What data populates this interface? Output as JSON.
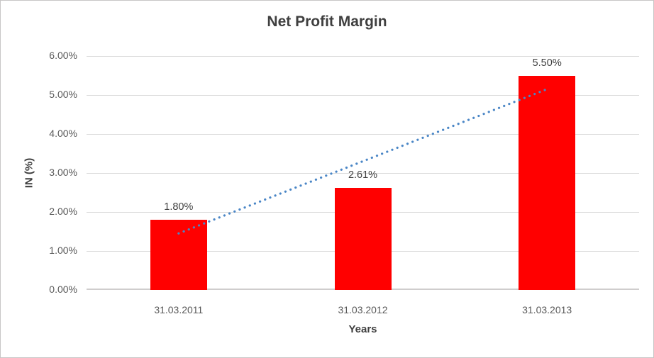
{
  "chart_data": {
    "type": "bar",
    "title": "Net Profit Margin",
    "xlabel": "Years",
    "ylabel": "IN (%)",
    "categories": [
      "31.03.2011",
      "31.03.2012",
      "31.03.2013"
    ],
    "values": [
      1.8,
      2.61,
      5.5
    ],
    "data_labels": [
      "1.80%",
      "2.61%",
      "5.50%"
    ],
    "ylim": [
      0,
      6
    ],
    "yticks": [
      {
        "value": 0,
        "label": "0.00%"
      },
      {
        "value": 1,
        "label": "1.00%"
      },
      {
        "value": 2,
        "label": "2.00%"
      },
      {
        "value": 3,
        "label": "3.00%"
      },
      {
        "value": 4,
        "label": "4.00%"
      },
      {
        "value": 5,
        "label": "5.00%"
      },
      {
        "value": 6,
        "label": "6.00%"
      }
    ],
    "grid": true,
    "legend": false,
    "bar_color": "#ff0000",
    "trendline": {
      "type": "linear",
      "style": "dotted",
      "color": "#4a86c6",
      "y_start": 1.45,
      "y_end": 5.15
    }
  },
  "colors": {
    "gridline": "#d9d9d9",
    "axis_line": "#cfcdcd",
    "title_text": "#3f3f3f",
    "tick_text": "#595959",
    "label_text": "#404040",
    "border": "#c8c6c6",
    "background": "#ffffff"
  }
}
